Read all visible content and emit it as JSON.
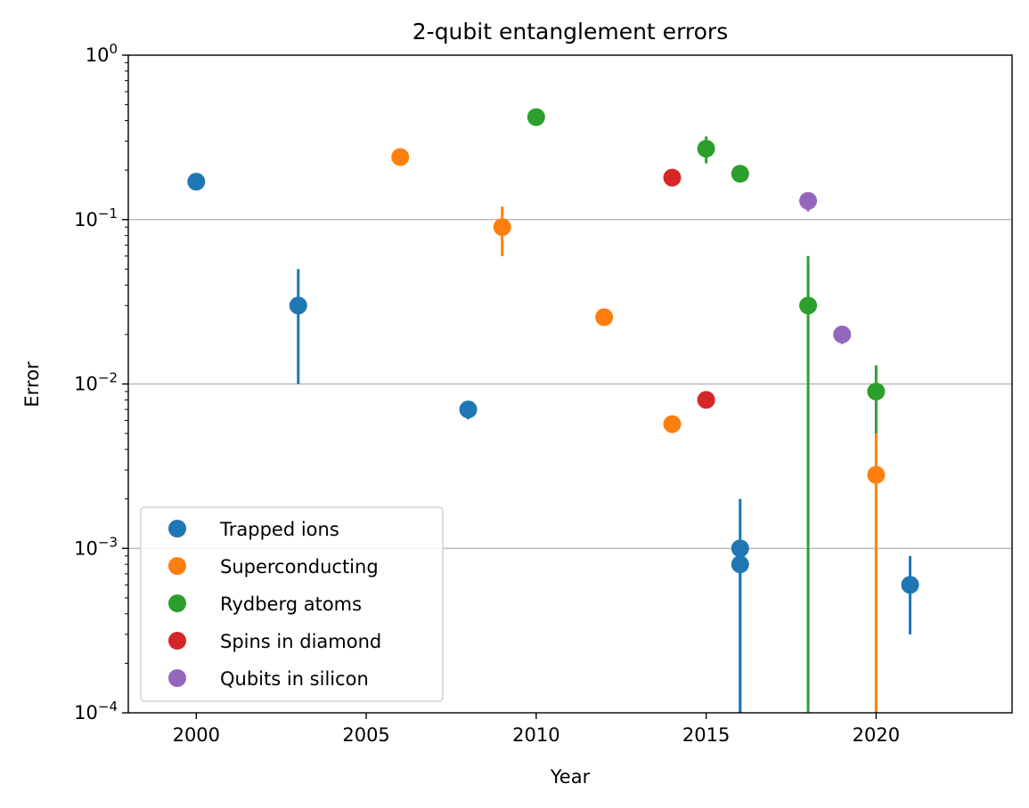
{
  "chart_data": {
    "type": "scatter",
    "title": "2-qubit entanglement errors",
    "xlabel": "Year",
    "ylabel": "Error",
    "xlim": [
      1998,
      2024
    ],
    "ylim": [
      0.0001,
      1
    ],
    "yscale": "log",
    "x_ticks": [
      "2000",
      "2005",
      "2010",
      "2015",
      "2020"
    ],
    "y_ticks": [
      {
        "base": "10",
        "exp": "0",
        "value": 1
      },
      {
        "base": "10",
        "exp": "−1",
        "value": 0.1
      },
      {
        "base": "10",
        "exp": "−2",
        "value": 0.01
      },
      {
        "base": "10",
        "exp": "−3",
        "value": 0.001
      },
      {
        "base": "10",
        "exp": "−4",
        "value": 0.0001
      }
    ],
    "grid": "horizontal major",
    "legend_position": "lower-left",
    "series": [
      {
        "name": "Trapped ions",
        "color": "#1f77b4",
        "points": [
          {
            "x": 2000,
            "y": 0.17
          },
          {
            "x": 2003,
            "y": 0.03,
            "err_low": 0.01,
            "err_high": 0.05
          },
          {
            "x": 2008,
            "y": 0.007,
            "err_low": 0.0061,
            "err_high": 0.0071
          },
          {
            "x": 2016,
            "y": 0.001,
            "err_low": 0.0001,
            "err_high": 0.002
          },
          {
            "x": 2016,
            "y": 0.0008,
            "err_low": 0.0001,
            "err_high": 0.0009
          },
          {
            "x": 2021,
            "y": 0.0006,
            "err_low": 0.0003,
            "err_high": 0.0009
          }
        ]
      },
      {
        "name": "Superconducting",
        "color": "#ff7f0e",
        "points": [
          {
            "x": 2006,
            "y": 0.24
          },
          {
            "x": 2009,
            "y": 0.09,
            "err_low": 0.06,
            "err_high": 0.12
          },
          {
            "x": 2012,
            "y": 0.0255
          },
          {
            "x": 2014,
            "y": 0.0057
          },
          {
            "x": 2020,
            "y": 0.0028,
            "err_low": 0.0001,
            "err_high": 0.005
          }
        ]
      },
      {
        "name": "Rydberg atoms",
        "color": "#2ca02c",
        "points": [
          {
            "x": 2010,
            "y": 0.42
          },
          {
            "x": 2015,
            "y": 0.27,
            "err_low": 0.22,
            "err_high": 0.32
          },
          {
            "x": 2016,
            "y": 0.19
          },
          {
            "x": 2018,
            "y": 0.03,
            "err_low": 0.0001,
            "err_high": 0.06
          },
          {
            "x": 2020,
            "y": 0.009,
            "err_low": 0.005,
            "err_high": 0.013
          }
        ]
      },
      {
        "name": "Spins in diamond",
        "color": "#d62728",
        "points": [
          {
            "x": 2014,
            "y": 0.18
          },
          {
            "x": 2015,
            "y": 0.008
          }
        ]
      },
      {
        "name": "Qubits in silicon",
        "color": "#9467bd",
        "points": [
          {
            "x": 2018,
            "y": 0.13,
            "err_low": 0.112,
            "err_high": 0.14
          },
          {
            "x": 2019,
            "y": 0.02,
            "err_low": 0.0175,
            "err_high": 0.021
          }
        ]
      }
    ]
  }
}
